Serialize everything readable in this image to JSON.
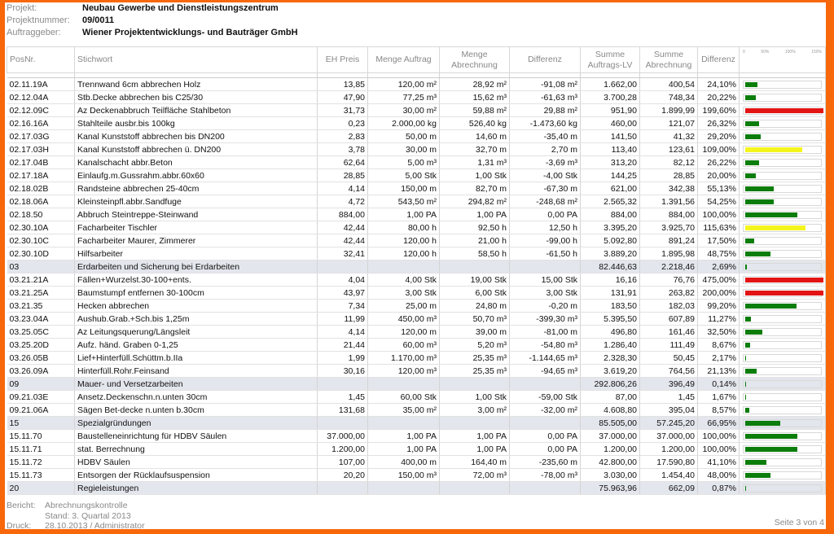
{
  "header": {
    "project_label": "Projekt:",
    "project": "Neubau Gewerbe und Dienstleistungszentrum",
    "number_label": "Projektnummer:",
    "number": "09/0011",
    "client_label": "Auftraggeber:",
    "client": "Wiener Projektentwicklungs- und Bauträger GmbH"
  },
  "columns": {
    "pos": "PosNr.",
    "stichwort": "Stichwort",
    "eh": "EH Preis",
    "menge_auftrag": "Menge Auftrag",
    "menge_abr": "Menge Abrechnung",
    "diff": "Differenz",
    "summe_lv": "Summe Auftrags-LV",
    "summe_abr": "Summe Abrechnung",
    "diff_pct": "Differenz",
    "scale": [
      "0",
      "50%",
      "100%",
      "150%"
    ]
  },
  "colors": {
    "green": "#0b7d0b",
    "yellow": "#f5f51e",
    "red": "#e31414",
    "group": "#e3e6ec"
  },
  "rows": [
    [
      "02.11.19A",
      "Trennwand 6cm abbrechen Holz",
      "13,85",
      "120,00 m²",
      "28,92 m²",
      "-91,08 m²",
      "1.662,00",
      "400,54",
      "24,10%"
    ],
    [
      "02.12.04A",
      "Stb.Decke abbrechen bis C25/30",
      "47,90",
      "77,25 m³",
      "15,62 m³",
      "-61,63 m³",
      "3.700,28",
      "748,34",
      "20,22%"
    ],
    [
      "02.12.09C",
      "Az Deckenabbruch Teilfläche Stahlbeton",
      "31,73",
      "30,00 m²",
      "59,88 m²",
      "29,88 m²",
      "951,90",
      "1.899,99",
      "199,60%"
    ],
    [
      "02.16.16A",
      "Stahlteile ausbr.bis 100kg",
      "0,23",
      "2.000,00 kg",
      "526,40 kg",
      "-1.473,60 kg",
      "460,00",
      "121,07",
      "26,32%"
    ],
    [
      "02.17.03G",
      "Kanal  Kunststoff  abbrechen bis DN200",
      "2,83",
      "50,00 m",
      "14,60 m",
      "-35,40 m",
      "141,50",
      "41,32",
      "29,20%"
    ],
    [
      "02.17.03H",
      "Kanal  Kunststoff  abbrechen ü. DN200",
      "3,78",
      "30,00 m",
      "32,70 m",
      "2,70 m",
      "113,40",
      "123,61",
      "109,00%"
    ],
    [
      "02.17.04B",
      "Kanalschacht abbr.Beton",
      "62,64",
      "5,00 m³",
      "1,31 m³",
      "-3,69 m³",
      "313,20",
      "82,12",
      "26,22%"
    ],
    [
      "02.17.18A",
      "Einlaufg.m.Gussrahm.abbr.60x60",
      "28,85",
      "5,00 Stk",
      "1,00 Stk",
      "-4,00 Stk",
      "144,25",
      "28,85",
      "20,00%"
    ],
    [
      "02.18.02B",
      "Randsteine abbrechen 25-40cm",
      "4,14",
      "150,00 m",
      "82,70 m",
      "-67,30 m",
      "621,00",
      "342,38",
      "55,13%"
    ],
    [
      "02.18.06A",
      "Kleinsteinpfl.abbr.Sandfuge",
      "4,72",
      "543,50 m²",
      "294,82 m²",
      "-248,68 m²",
      "2.565,32",
      "1.391,56",
      "54,25%"
    ],
    [
      "02.18.50",
      "Abbruch Steintreppe-Steinwand",
      "884,00",
      "1,00 PA",
      "1,00 PA",
      "0,00 PA",
      "884,00",
      "884,00",
      "100,00%"
    ],
    [
      "02.30.10A",
      "Facharbeiter Tischler",
      "42,44",
      "80,00 h",
      "92,50 h",
      "12,50 h",
      "3.395,20",
      "3.925,70",
      "115,63%"
    ],
    [
      "02.30.10C",
      "Facharbeiter Maurer, Zimmerer",
      "42,44",
      "120,00 h",
      "21,00 h",
      "-99,00 h",
      "5.092,80",
      "891,24",
      "17,50%"
    ],
    [
      "02.30.10D",
      "Hilfsarbeiter",
      "32,41",
      "120,00 h",
      "58,50 h",
      "-61,50 h",
      "3.889,20",
      "1.895,98",
      "48,75%"
    ],
    [
      "03",
      "Erdarbeiten und Sicherung bei Erdarbeiten",
      "",
      "",
      "",
      "",
      "82.446,63",
      "2.218,46",
      "2,69%"
    ],
    [
      "03.21.21A",
      "Fällen+Wurzelst.30-100+ents.",
      "4,04",
      "4,00 Stk",
      "19,00 Stk",
      "15,00 Stk",
      "16,16",
      "76,76",
      "475,00%"
    ],
    [
      "03.21.25A",
      "Baumstumpf entfernen 30-100cm",
      "43,97",
      "3,00 Stk",
      "6,00 Stk",
      "3,00 Stk",
      "131,91",
      "263,82",
      "200,00%"
    ],
    [
      "03.21.35",
      "Hecken abbrechen",
      "7,34",
      "25,00 m",
      "24,80 m",
      "-0,20 m",
      "183,50",
      "182,03",
      "99,20%"
    ],
    [
      "03.23.04A",
      "Aushub.Grab.+Sch.bis 1,25m",
      "11,99",
      "450,00 m³",
      "50,70 m³",
      "-399,30 m³",
      "5.395,50",
      "607,89",
      "11,27%"
    ],
    [
      "03.25.05C",
      "Az Leitungsquerung/Längsleit",
      "4,14",
      "120,00 m",
      "39,00 m",
      "-81,00 m",
      "496,80",
      "161,46",
      "32,50%"
    ],
    [
      "03.25.20D",
      "Aufz. händ. Graben 0-1,25",
      "21,44",
      "60,00 m³",
      "5,20 m³",
      "-54,80 m³",
      "1.286,40",
      "111,49",
      "8,67%"
    ],
    [
      "03.26.05B",
      "Lief+Hinterfüll.Schüttm.b.IIa",
      "1,99",
      "1.170,00 m³",
      "25,35 m³",
      "-1.144,65 m³",
      "2.328,30",
      "50,45",
      "2,17%"
    ],
    [
      "03.26.09A",
      "Hinterfüll.Rohr.Feinsand",
      "30,16",
      "120,00 m³",
      "25,35 m³",
      "-94,65 m³",
      "3.619,20",
      "764,56",
      "21,13%"
    ],
    [
      "09",
      "Mauer- und Versetzarbeiten",
      "",
      "",
      "",
      "",
      "292.806,26",
      "396,49",
      "0,14%"
    ],
    [
      "09.21.03E",
      "Ansetz.Deckenschn.n.unten 30cm",
      "1,45",
      "60,00 Stk",
      "1,00 Stk",
      "-59,00 Stk",
      "87,00",
      "1,45",
      "1,67%"
    ],
    [
      "09.21.06A",
      "Sägen Bet-decke n.unten b.30cm",
      "131,68",
      "35,00 m²",
      "3,00 m²",
      "-32,00 m²",
      "4.608,80",
      "395,04",
      "8,57%"
    ],
    [
      "15",
      "Spezialgründungen",
      "",
      "",
      "",
      "",
      "85.505,00",
      "57.245,20",
      "66,95%"
    ],
    [
      "15.11.70",
      "Baustelleneinrichtung für HDBV Säulen",
      "37.000,00",
      "1,00 PA",
      "1,00 PA",
      "0,00 PA",
      "37.000,00",
      "37.000,00",
      "100,00%"
    ],
    [
      "15.11.71",
      "stat. Berrechnung",
      "1.200,00",
      "1,00 PA",
      "1,00 PA",
      "0,00 PA",
      "1.200,00",
      "1.200,00",
      "100,00%"
    ],
    [
      "15.11.72",
      "HDBV Säulen",
      "107,00",
      "400,00 m",
      "164,40 m",
      "-235,60 m",
      "42.800,00",
      "17.590,80",
      "41,10%"
    ],
    [
      "15.11.73",
      "Entsorgen der Rücklaufsuspension",
      "20,20",
      "150,00 m³",
      "72,00 m³",
      "-78,00 m³",
      "3.030,00",
      "1.454,40",
      "48,00%"
    ],
    [
      "20",
      "Regieleistungen",
      "",
      "",
      "",
      "",
      "75.963,96",
      "662,09",
      "0,87%"
    ]
  ],
  "footer": {
    "report_label": "Bericht:",
    "report": "Abrechnungskontrolle",
    "stand": "Stand: 3. Quartal 2013",
    "print_label": "Druck:",
    "print": "28.10.2013 / Administrator",
    "page": "Seite 3 von 4"
  }
}
